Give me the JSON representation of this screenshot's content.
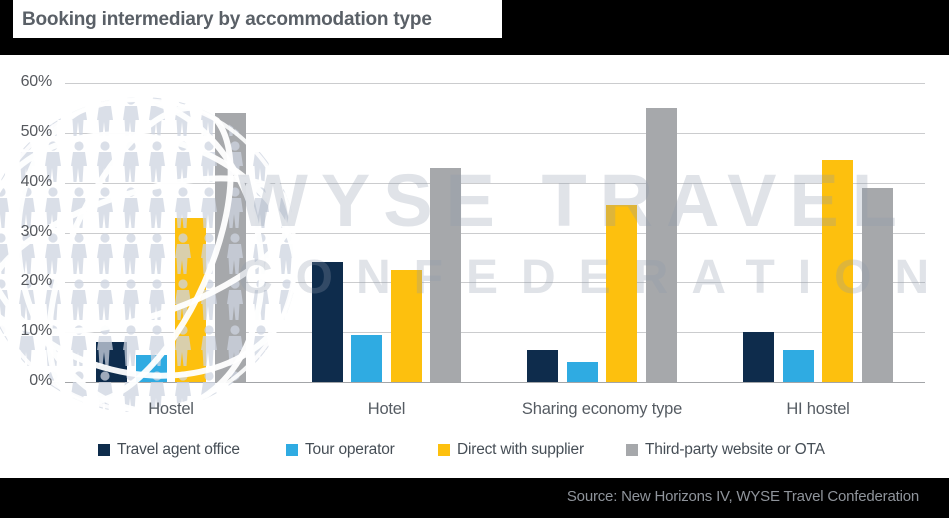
{
  "header": {
    "title": "Booking intermediary by accommodation type"
  },
  "watermark": {
    "line1": "WYSE TRAVEL",
    "line2": "CONFEDERATION"
  },
  "footer": {
    "source": "Source: New Horizons IV, WYSE Travel Confederation"
  },
  "colors": {
    "band": "#000000",
    "title_text": "#5a6067",
    "axis_text": "#56595e",
    "legend_text": "#464e56",
    "source_text": "#8f949b",
    "gridline": "#cbccce",
    "zero_line": "#a3a5a8"
  },
  "chart_data": {
    "type": "bar",
    "title": "Booking intermediary by accommodation type",
    "categories": [
      "Hostel",
      "Hotel",
      "Sharing economy type",
      "HI hostel"
    ],
    "series": [
      {
        "name": "Travel agent office",
        "color": "#0e2c4c",
        "values": [
          8,
          24,
          6.5,
          10
        ]
      },
      {
        "name": "Tour operator",
        "color": "#2fabe2",
        "values": [
          5.5,
          9.5,
          4,
          6.5
        ]
      },
      {
        "name": "Direct with supplier",
        "color": "#fdc00e",
        "values": [
          33,
          22.5,
          35.5,
          44.5
        ]
      },
      {
        "name": "Third-party website or OTA",
        "color": "#a6a8ab",
        "values": [
          54,
          43,
          55,
          39
        ]
      }
    ],
    "xlabel": "",
    "ylabel": "",
    "ylim": [
      0,
      60
    ],
    "yticks": {
      "values": [
        0,
        10,
        20,
        30,
        40,
        50,
        60
      ],
      "labels": [
        "0%",
        "10%",
        "20%",
        "30%",
        "40%",
        "50%",
        "60%"
      ]
    },
    "grid": true,
    "legend_position": "bottom"
  }
}
